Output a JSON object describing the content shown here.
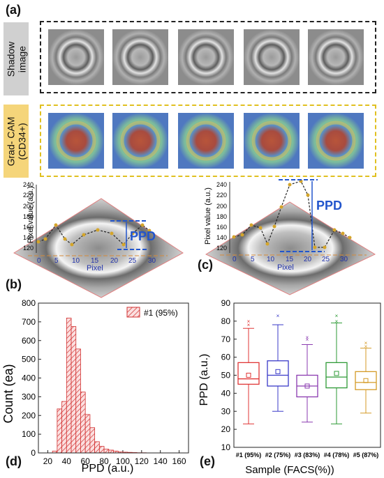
{
  "panel_labels": {
    "a": "(a)",
    "b": "(b)",
    "c": "(c)",
    "d": "(d)",
    "e": "(e)"
  },
  "row_labels": {
    "shadow": "Shadow\nimage",
    "gradcam": "Grad- CAM\n(CD34+)"
  },
  "colors": {
    "shadow_tag_bg": "#d0d0d0",
    "gradcam_tag_bg": "#f5d57a",
    "gradcam_border": "#e0c020",
    "ppd_blue": "#2255cc",
    "profile_dot": "#d4a52a",
    "hist_red": "#d23030"
  },
  "profile_b": {
    "ylabel": "Pixel value (a.u.)",
    "xlabel": "Pixel",
    "annotation": "PPD",
    "yticks": [
      "240",
      "220",
      "200",
      "180",
      "160",
      "140",
      "120"
    ],
    "xticks": [
      "0",
      "5",
      "10",
      "15",
      "20",
      "25",
      "30"
    ]
  },
  "profile_c": {
    "ylabel": "Pixel value (a.u.)",
    "xlabel": "Pixel",
    "annotation": "PPD",
    "yticks": [
      "240",
      "220",
      "200",
      "180",
      "160",
      "140",
      "120"
    ],
    "xticks": [
      "0",
      "5",
      "10",
      "15",
      "20",
      "25",
      "30"
    ]
  },
  "chart_data": [
    {
      "type": "bar",
      "xlabel": "PPD (a.u.)",
      "ylabel": "Count (ea)",
      "legend": "#1 (95%)",
      "xlim": [
        10,
        170
      ],
      "ylim": [
        0,
        800
      ],
      "xticks": [
        "20",
        "40",
        "60",
        "80",
        "100",
        "120",
        "140",
        "160"
      ],
      "yticks": [
        "0",
        "100",
        "200",
        "300",
        "400",
        "500",
        "600",
        "700",
        "800"
      ],
      "bin_width": 5,
      "bins": [
        {
          "x0": 25,
          "count": 10
        },
        {
          "x0": 30,
          "count": 235
        },
        {
          "x0": 35,
          "count": 275
        },
        {
          "x0": 40,
          "count": 720
        },
        {
          "x0": 45,
          "count": 675
        },
        {
          "x0": 50,
          "count": 555
        },
        {
          "x0": 55,
          "count": 325
        },
        {
          "x0": 60,
          "count": 205
        },
        {
          "x0": 65,
          "count": 135
        },
        {
          "x0": 70,
          "count": 60
        },
        {
          "x0": 75,
          "count": 35
        },
        {
          "x0": 80,
          "count": 20
        },
        {
          "x0": 85,
          "count": 15
        },
        {
          "x0": 90,
          "count": 10
        },
        {
          "x0": 95,
          "count": 5
        },
        {
          "x0": 100,
          "count": 4
        },
        {
          "x0": 105,
          "count": 3
        },
        {
          "x0": 110,
          "count": 2
        },
        {
          "x0": 115,
          "count": 1
        },
        {
          "x0": 120,
          "count": 1
        }
      ]
    },
    {
      "type": "box",
      "xlabel": "Sample (FACS(%))",
      "ylabel": "PPD (a.u.)",
      "ylim": [
        10,
        90
      ],
      "yticks": [
        "10",
        "20",
        "30",
        "40",
        "50",
        "60",
        "70",
        "80",
        "90"
      ],
      "series": [
        {
          "name": "#1 (95%)",
          "color": "#e03535",
          "whisker_low": 23,
          "q1": 45,
          "median": 48,
          "q3": 57,
          "whisker_high": 76,
          "mean": 50,
          "outliers": [
            78,
            80
          ]
        },
        {
          "name": "#2 (75%)",
          "color": "#3a3ac8",
          "whisker_low": 30,
          "q1": 44,
          "median": 50,
          "q3": 58,
          "whisker_high": 78,
          "mean": 52,
          "outliers": [
            83
          ]
        },
        {
          "name": "#3 (83%)",
          "color": "#8a3ab0",
          "whisker_low": 24,
          "q1": 38,
          "median": 44,
          "q3": 50,
          "whisker_high": 67,
          "mean": 44,
          "outliers": [
            70,
            71
          ]
        },
        {
          "name": "#4 (78%)",
          "color": "#2e9a36",
          "whisker_low": 23,
          "q1": 43,
          "median": 49,
          "q3": 57,
          "whisker_high": 79,
          "mean": 51,
          "outliers": [
            80,
            83
          ]
        },
        {
          "name": "#5 (87%)",
          "color": "#d49a25",
          "whisker_low": 29,
          "q1": 42,
          "median": 46,
          "q3": 52,
          "whisker_high": 65,
          "mean": 47,
          "outliers": [
            66,
            68
          ]
        }
      ]
    }
  ]
}
